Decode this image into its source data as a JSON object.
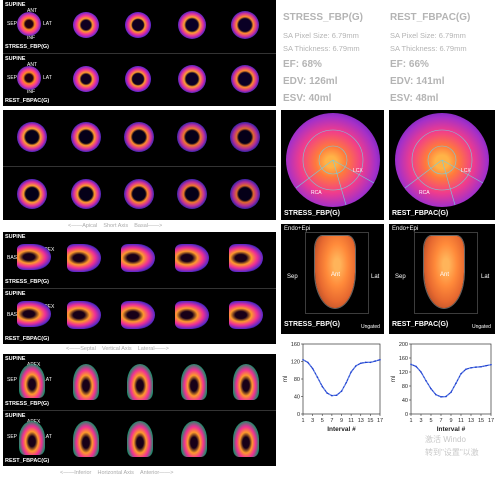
{
  "left_panels": {
    "supine": "SUPINE",
    "ant": "ANT",
    "sep": "SEP",
    "lat": "LAT",
    "inf": "INF",
    "base": "BASE",
    "apex": "APEX",
    "stress_row": "STRESS_FBP(G)",
    "rest_row": "REST_FBPAC(G)",
    "short_axis": {
      "left": "Apical",
      "mid": "Short Axis",
      "right": "Basal"
    },
    "vertical_axis": {
      "left": "Septal",
      "mid": "Vertical Axis",
      "right": "Lateral"
    },
    "horizontal_axis": {
      "left": "Inferior",
      "mid": "Horizontal Axis",
      "right": "Anterior"
    }
  },
  "stress_stats": {
    "title": "STRESS_FBP(G)",
    "pixel_size": "SA Pixel Size: 6.79mm",
    "thickness": "SA Thickness: 6.79mm",
    "ef": "EF: 68%",
    "edv": "EDV: 126ml",
    "esv": "ESV: 40ml"
  },
  "rest_stats": {
    "title": "REST_FBPAC(G)",
    "pixel_size": "SA Pixel Size: 6.79mm",
    "thickness": "SA Thickness: 6.79mm",
    "ef": "EF: 66%",
    "edv": "EDV: 141ml",
    "esv": "ESV: 48ml"
  },
  "polar_maps": {
    "stress_label": "STRESS_FBP(G)",
    "rest_label": "REST_FBPAC(G)",
    "rca": "RCA",
    "lcx": "LCX"
  },
  "surface_views": {
    "endo_epi": "Endo+Epi",
    "sep": "Sep",
    "lat": "Lat",
    "ant": "Ant",
    "stress_label": "STRESS_FBP(G)",
    "rest_label": "REST_FBPAC(G)",
    "ungated": "Ungated"
  },
  "volume_curves": {
    "ylabel": "ml",
    "xlabel": "Interval #",
    "stress_yticks": [
      "160",
      "120",
      "80",
      "40",
      "0"
    ],
    "rest_yticks": [
      "200",
      "160",
      "120",
      "80",
      "40",
      "0"
    ],
    "xticks": [
      "1",
      "3",
      "5",
      "7",
      "9",
      "11",
      "13",
      "15",
      "17"
    ]
  },
  "watermark": {
    "line1": "激活 Windo",
    "line2": "转到\"设置\"以激"
  },
  "chart_data": [
    {
      "type": "line",
      "title": "",
      "xlabel": "Interval #",
      "ylabel": "ml",
      "ylim": [
        0,
        160
      ],
      "x": [
        1,
        2,
        3,
        4,
        5,
        6,
        7,
        8,
        9,
        10,
        11,
        12,
        13,
        14,
        15,
        16,
        17
      ],
      "series": [
        {
          "values": [
            124,
            118,
            104,
            84,
            63,
            48,
            42,
            43,
            52,
            72,
            96,
            110,
            116,
            118,
            118,
            121,
            124
          ]
        }
      ]
    },
    {
      "type": "line",
      "title": "",
      "xlabel": "Interval #",
      "ylabel": "ml",
      "ylim": [
        0,
        200
      ],
      "x": [
        1,
        2,
        3,
        4,
        5,
        6,
        7,
        8,
        9,
        10,
        11,
        12,
        13,
        14,
        15,
        16,
        17
      ],
      "series": [
        {
          "values": [
            142,
            136,
            120,
            95,
            72,
            55,
            49,
            50,
            62,
            88,
            115,
            128,
            132,
            134,
            135,
            138,
            141
          ]
        }
      ]
    }
  ]
}
